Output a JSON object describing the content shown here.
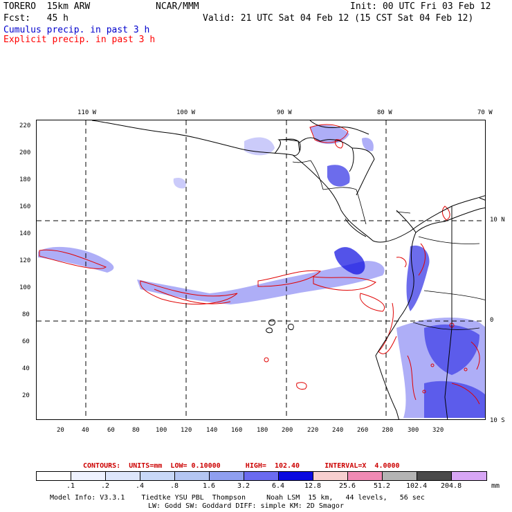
{
  "header": {
    "model": "TORERO  15km ARW",
    "org": "NCAR/MMM",
    "init": "Init: 00 UTC Fri 03 Feb 12",
    "fcst": "Fcst:   45 h",
    "valid": "Valid: 21 UTC Sat 04 Feb 12 (15 CST Sat 04 Feb 12)",
    "cumulus": "Cumulus precip. in past 3 h",
    "explicit": "Explicit precip. in past 3 h",
    "cumulus_color": "#0000cc",
    "explicit_color": "#ff0000"
  },
  "map": {
    "lon_labels": [
      "110 W",
      "100 W",
      "90 W",
      "80 W",
      "70 W"
    ],
    "lat_labels": [
      "10 N",
      "0",
      "10 S"
    ],
    "x_ticks": [
      "20",
      "40",
      "60",
      "80",
      "100",
      "120",
      "140",
      "160",
      "180",
      "200",
      "220",
      "240",
      "260",
      "280",
      "300",
      "320"
    ],
    "y_ticks": [
      "220",
      "200",
      "180",
      "160",
      "140",
      "120",
      "100",
      "80",
      "60",
      "40",
      "20"
    ]
  },
  "contours": {
    "text": "CONTOURS:  UNITS=mm  LOW= 0.10000      HIGH=  102.40      INTERVAL=X  4.0000",
    "color": "#cc0000"
  },
  "colorbar": {
    "colors": [
      "#ffffff",
      "#eef2ff",
      "#dde6fb",
      "#c8d8f7",
      "#b4c6f2",
      "#8f9ff0",
      "#6b6bf0",
      "#0a0ae0",
      "#f7cfcf",
      "#f08ab4",
      "#b4b4b4",
      "#4a4a4a",
      "#d7a6f5"
    ],
    "labels": [
      ".1",
      ".2",
      ".4",
      ".8",
      "1.6",
      "3.2",
      "6.4",
      "12.8",
      "25.6",
      "51.2",
      "102.4",
      "204.8"
    ],
    "units": "mm"
  },
  "footer": {
    "line1": "Model Info: V3.3.1    Tiedtke YSU PBL  Thompson     Noah LSM  15 km,   44 levels,   56 sec",
    "line2": "LW: Godd SW: Goddard DIFF: simple KM: 2D Smagor"
  }
}
